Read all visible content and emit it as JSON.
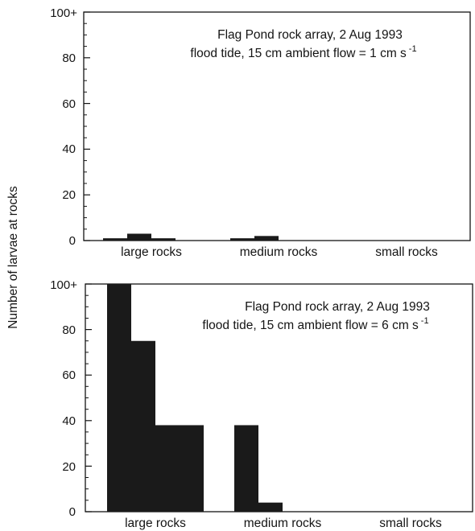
{
  "chart_data": [
    {
      "type": "bar",
      "title_lines": [
        "Flag Pond rock array, 2 Aug 1993",
        "flood tide, 15 cm ambient flow = 1 cm s"
      ],
      "title_superscript": "-1",
      "ylabel": "Number of larvae at rocks",
      "yticks": [
        "0",
        "20",
        "40",
        "60",
        "80",
        "100+"
      ],
      "ylim": [
        0,
        100
      ],
      "categories": [
        "large rocks",
        "medium rocks",
        "small rocks"
      ],
      "bars_per_category": 4,
      "values": [
        [
          1,
          3,
          1,
          0
        ],
        [
          1,
          2,
          0,
          0
        ],
        [
          0,
          0,
          0,
          0
        ]
      ],
      "colors": {
        "bars": "#1a1a1a",
        "axes": "#141414"
      }
    },
    {
      "type": "bar",
      "title_lines": [
        "Flag Pond rock array, 2 Aug 1993",
        "flood tide, 15 cm ambient flow = 6 cm s"
      ],
      "title_superscript": "-1",
      "ylabel": "Number of larvae at rocks",
      "yticks": [
        "0",
        "20",
        "40",
        "60",
        "80",
        "100+"
      ],
      "ylim": [
        0,
        100
      ],
      "categories": [
        "large rocks",
        "medium rocks",
        "small rocks"
      ],
      "bars_per_category": 4,
      "values": [
        [
          100,
          75,
          38,
          38
        ],
        [
          38,
          4,
          0,
          0
        ],
        [
          0,
          0,
          0,
          0
        ]
      ],
      "colors": {
        "bars": "#1a1a1a",
        "axes": "#141414"
      }
    }
  ]
}
